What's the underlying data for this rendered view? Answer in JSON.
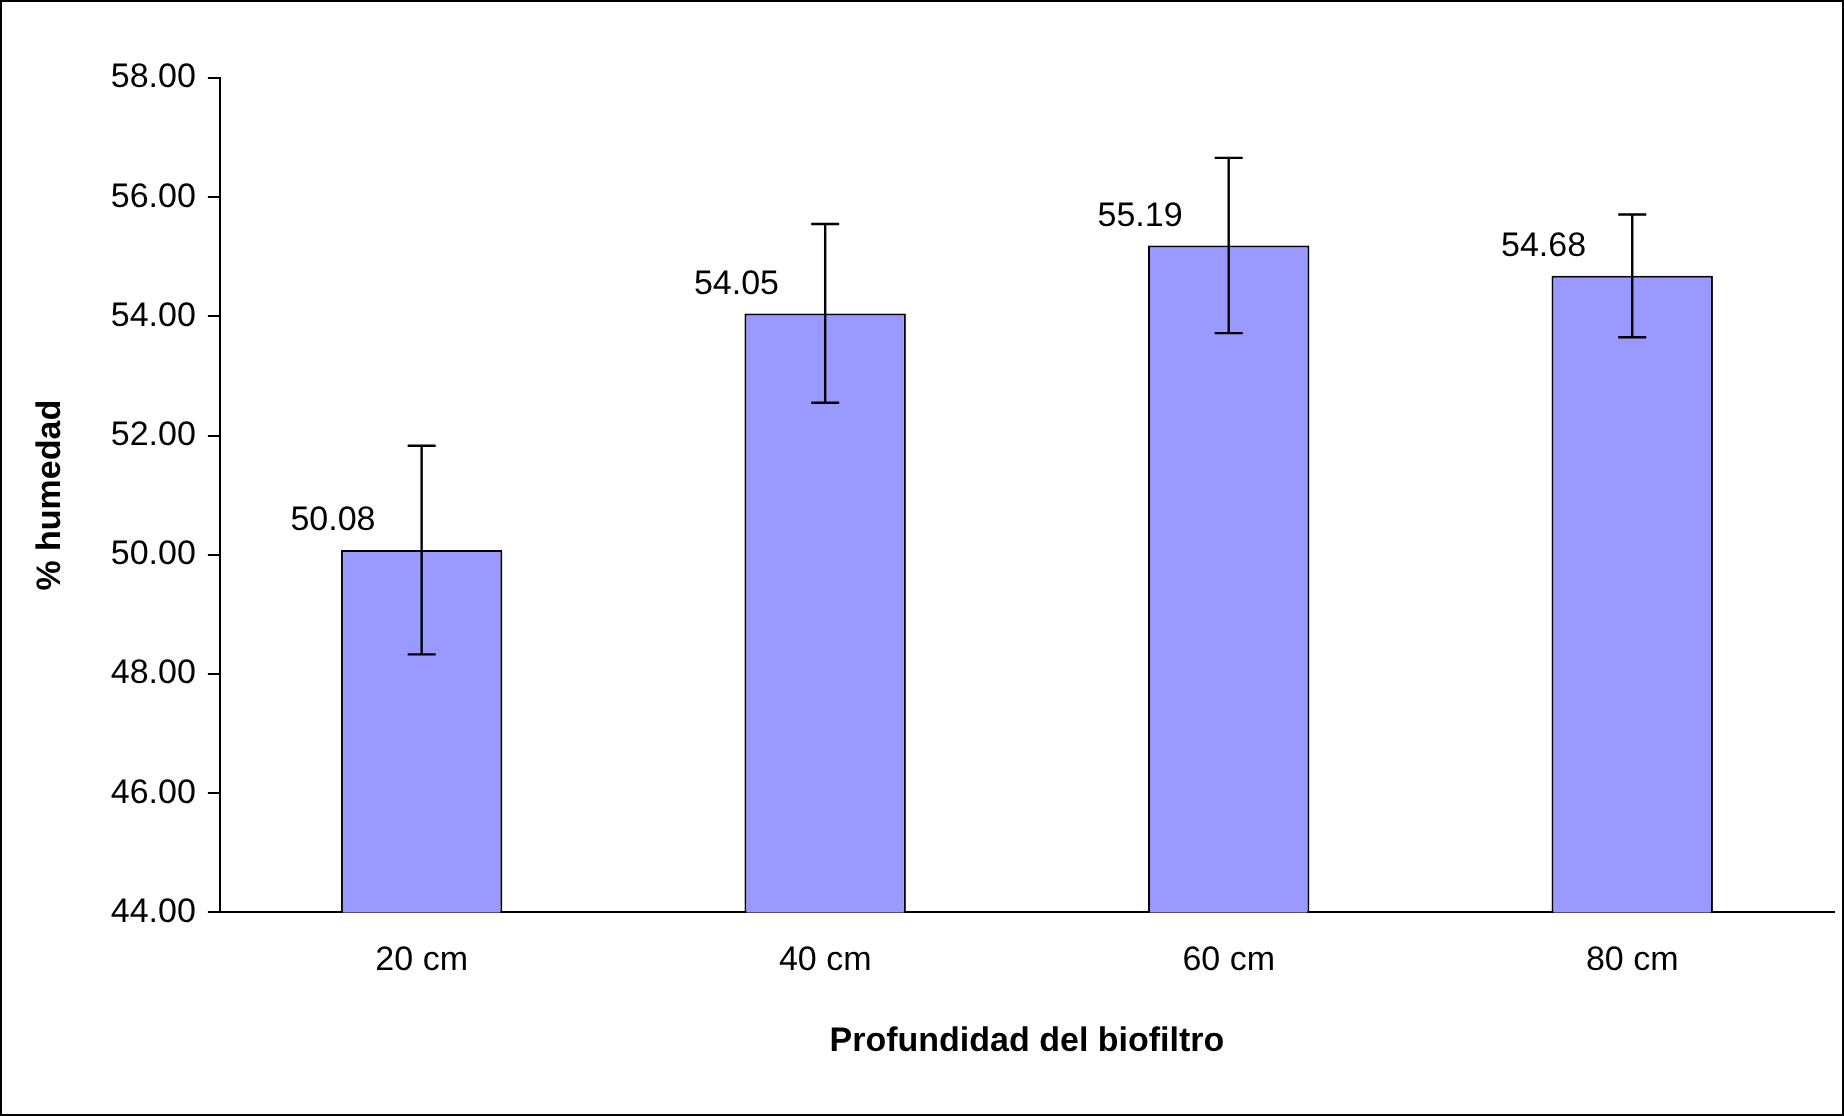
{
  "chart_data": {
    "type": "bar",
    "xlabel": "Profundidad del biofiltro",
    "ylabel": "% humedad",
    "categories": [
      "20 cm",
      "40 cm",
      "60 cm",
      "80 cm"
    ],
    "values": [
      50.08,
      54.05,
      55.19,
      54.68
    ],
    "errors": [
      1.75,
      1.5,
      1.47,
      1.03
    ],
    "color": "#9999ff",
    "data_labels": true,
    "grid": false,
    "legend": false,
    "ylim": [
      44,
      58
    ],
    "yticks": [
      {
        "value": 44,
        "label": "44.00"
      },
      {
        "value": 46,
        "label": "46.00"
      },
      {
        "value": 48,
        "label": "48.00"
      },
      {
        "value": 50,
        "label": "50.00"
      },
      {
        "value": 52,
        "label": "52.00"
      },
      {
        "value": 54,
        "label": "54.00"
      },
      {
        "value": 56,
        "label": "56.00"
      },
      {
        "value": 58,
        "label": "58.00"
      }
    ]
  }
}
